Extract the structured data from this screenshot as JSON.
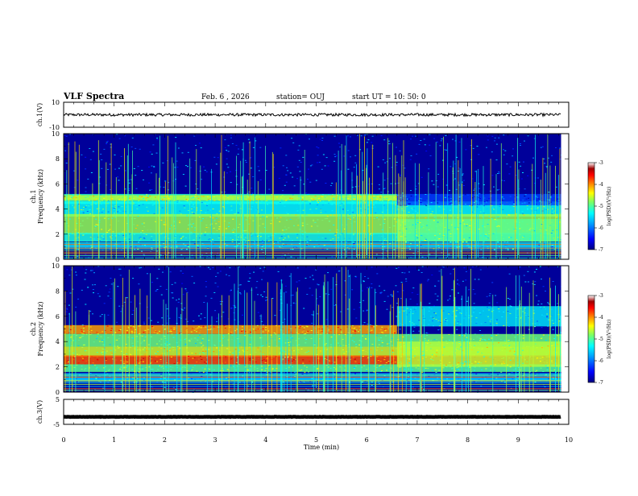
{
  "header": {
    "title": "VLF Spectra",
    "date": "Feb. 6 , 2026",
    "station": "station= OUJ",
    "start": "start  UT =   10: 50: 0"
  },
  "colors": {
    "spectrogram_background": "#00009a",
    "trace": "#000000",
    "colormap": [
      "#00007f",
      "#0000ff",
      "#0080ff",
      "#00ffff",
      "#80ff80",
      "#ffff00",
      "#ff8000",
      "#ff0000",
      "#800000",
      "#ffffff"
    ]
  },
  "chart_data": [
    {
      "type": "line",
      "name": "ch1-waveform",
      "ylabel": "ch.1(V)",
      "xlim": [
        0,
        10
      ],
      "ylim": [
        -10,
        10
      ],
      "ytick_labels": [
        "10",
        "-10"
      ],
      "baseline": 0,
      "end_x": 9.85
    },
    {
      "type": "heatmap",
      "name": "ch1-spectrogram",
      "ylabel": "ch.1\nFrequency (kHz)",
      "xlim": [
        0,
        10
      ],
      "ylim": [
        0,
        10
      ],
      "yticks": [
        0,
        2,
        4,
        6,
        8,
        10
      ],
      "end_x": 9.85,
      "colorbar": {
        "label": "log(PSD)(V²/Hz)",
        "range": [
          -7,
          -3
        ],
        "ticks": [
          "-3",
          "-4",
          "-5",
          "-6",
          "-7"
        ]
      },
      "bands": [
        {
          "from": 4.4,
          "to": 5.2,
          "level": 0.42
        },
        {
          "from": 4.7,
          "to": 5.1,
          "level": 0.55
        },
        {
          "from": 3.4,
          "to": 4.6,
          "level": 0.38
        },
        {
          "from": 2.0,
          "to": 3.6,
          "level": 0.52
        },
        {
          "from": 1.4,
          "to": 2.1,
          "level": 0.4
        },
        {
          "from": 0.8,
          "to": 1.3,
          "level": 0.3
        }
      ],
      "change_at": 6.6,
      "change_bands": [
        {
          "from": 4.3,
          "to": 5.2,
          "level": 0.18
        },
        {
          "from": 1.4,
          "to": 3.2,
          "level": 0.46
        }
      ]
    },
    {
      "type": "heatmap",
      "name": "ch2-spectrogram",
      "ylabel": "ch.2\nFrequency (kHz)",
      "xlim": [
        0,
        10
      ],
      "ylim": [
        0,
        10
      ],
      "yticks": [
        0,
        2,
        4,
        6,
        8,
        10
      ],
      "end_x": 9.85,
      "colorbar": {
        "label": "log(PSD)(V²/Hz)",
        "range": [
          -7,
          -3
        ],
        "ticks": [
          "-3",
          "-4",
          "-5",
          "-6",
          "-7"
        ]
      },
      "bands": [
        {
          "from": 4.6,
          "to": 5.3,
          "level": 0.72
        },
        {
          "from": 3.6,
          "to": 4.6,
          "level": 0.48
        },
        {
          "from": 2.8,
          "to": 3.6,
          "level": 0.58
        },
        {
          "from": 2.2,
          "to": 2.9,
          "level": 0.8
        },
        {
          "from": 1.6,
          "to": 2.2,
          "level": 0.46
        },
        {
          "from": 0.8,
          "to": 1.5,
          "level": 0.3
        }
      ],
      "change_at": 6.6,
      "change_bands": [
        {
          "from": 5.2,
          "to": 6.8,
          "level": 0.36
        },
        {
          "from": 2.0,
          "to": 4.0,
          "level": 0.55
        }
      ]
    },
    {
      "type": "line",
      "name": "ch3-waveform",
      "ylabel": "ch.3(V)",
      "xlim": [
        0,
        10
      ],
      "ylim": [
        -5,
        5
      ],
      "ytick_labels": [
        "5",
        "-5"
      ],
      "baseline": -2.0,
      "end_x": 9.85
    }
  ],
  "xaxis": {
    "label": "Time (min)",
    "ticks": [
      "0",
      "1",
      "2",
      "3",
      "4",
      "5",
      "6",
      "7",
      "8",
      "9",
      "10"
    ]
  }
}
